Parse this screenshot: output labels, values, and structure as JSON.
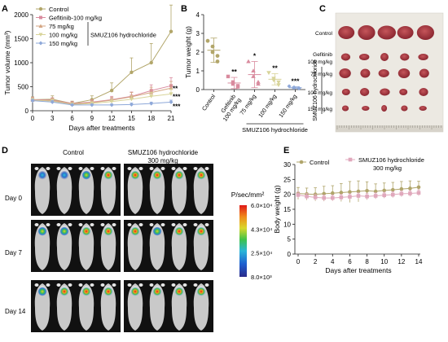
{
  "colors": {
    "control": "#b2a66a",
    "gefitinib": "#d98b9e",
    "smuz75": "#d4a683",
    "smuz100": "#d8d49a",
    "smuz150": "#8ea8d9",
    "bodyweight_control": "#b0a56b",
    "bodyweight_treated": "#e0a8bc",
    "tumor_tissue": "#a8333b"
  },
  "panelA": {
    "letter": "A",
    "legend": {
      "items": [
        "Control",
        "Gefitinib-100 mg/kg",
        "75 mg/kg",
        "100 mg/kg",
        "150 mg/kg"
      ],
      "group_label": "SMUZ106 hydrochloride"
    },
    "significance": [
      "**",
      "***",
      "***"
    ]
  },
  "panelB": {
    "letter": "B",
    "significance": [
      "**",
      "*",
      "**",
      "***"
    ],
    "group_label": "SMUZ106 hydrochloride"
  },
  "panelC": {
    "letter": "C",
    "row_labels": [
      "Control",
      "Gefitinib\n100 mg/kg",
      "75 mg/kg",
      "100 mg/kg",
      "150 mg/kg"
    ],
    "row_labels_lines": [
      [
        "Control"
      ],
      [
        "Gefitinib",
        "100 mg/kg"
      ],
      [
        "75 mg/kg"
      ],
      [
        "100 mg/kg"
      ],
      [
        "150 mg/kg"
      ]
    ],
    "group_label": "SMUZ106 hydrochloride"
  },
  "panelD": {
    "letter": "D",
    "col_headers": [
      "Control",
      "SMUZ106 hydrochloride",
      "300 mg/kg"
    ],
    "row_labels": [
      "Day 0",
      "Day 7",
      "Day 14"
    ],
    "colorbar": {
      "title": "P/sec/mm²",
      "ticks": [
        "6.0×10⁴",
        "4.3×10⁴",
        "2.5×10⁴",
        "8.0×10³"
      ]
    }
  },
  "panelE": {
    "letter": "E",
    "legend": [
      "Control",
      "SMUZ106 hydrochloride",
      "300 mg/kg"
    ]
  },
  "chart_data": [
    {
      "type": "line",
      "panel": "A",
      "xlabel": "Days after treatments",
      "ylabel": "Tumor volume (mm³)",
      "x": [
        0,
        3,
        6,
        9,
        12,
        15,
        18,
        21
      ],
      "xlim": [
        0,
        21
      ],
      "ylim": [
        0,
        2000
      ],
      "yticks": [
        0,
        500,
        1000,
        1500,
        2000
      ],
      "series": [
        {
          "name": "Control",
          "values": [
            230,
            240,
            150,
            230,
            420,
            800,
            1000,
            1650
          ],
          "err": [
            60,
            70,
            50,
            80,
            160,
            300,
            400,
            550
          ]
        },
        {
          "name": "Gefitinib-100 mg/kg",
          "values": [
            230,
            220,
            150,
            180,
            230,
            300,
            420,
            520
          ],
          "err": [
            50,
            50,
            40,
            50,
            70,
            90,
            120,
            170
          ]
        },
        {
          "name": "75 mg/kg",
          "values": [
            220,
            210,
            140,
            170,
            220,
            290,
            380,
            470
          ],
          "err": [
            50,
            50,
            40,
            50,
            60,
            90,
            110,
            140
          ]
        },
        {
          "name": "100 mg/kg",
          "values": [
            220,
            200,
            130,
            150,
            190,
            240,
            300,
            350
          ],
          "err": [
            40,
            40,
            30,
            40,
            50,
            70,
            80,
            100
          ]
        },
        {
          "name": "150 mg/kg",
          "values": [
            210,
            180,
            120,
            120,
            120,
            130,
            150,
            180
          ],
          "err": [
            30,
            30,
            20,
            20,
            20,
            30,
            30,
            40
          ]
        }
      ]
    },
    {
      "type": "scatter",
      "panel": "B",
      "ylabel": "Tumor weight (g)",
      "categories": [
        "Control",
        "Gefitinib\n100 mg/kg",
        "75 mg/kg",
        "100 mg/kg",
        "150 mg/kg"
      ],
      "category_lines": [
        [
          "Control"
        ],
        [
          "Gefitinib",
          "100 mg/kg"
        ],
        [
          "75 mg/kg"
        ],
        [
          "100 mg/kg"
        ],
        [
          "150 mg/kg"
        ]
      ],
      "ylim": [
        0,
        4
      ],
      "yticks": [
        0,
        1,
        2,
        3,
        4
      ],
      "groups": [
        {
          "points": [
            2.6,
            2.3,
            2.0,
            1.8,
            1.5
          ],
          "mean": 2.1,
          "sd": 0.65
        },
        {
          "points": [
            0.7,
            0.4,
            0.3,
            0.2,
            0.15
          ],
          "mean": 0.35,
          "sd": 0.3
        },
        {
          "points": [
            1.5,
            1.0,
            0.7,
            0.4,
            0.3
          ],
          "mean": 0.8,
          "sd": 0.7
        },
        {
          "points": [
            0.9,
            0.6,
            0.5,
            0.4,
            0.25
          ],
          "mean": 0.55,
          "sd": 0.3
        },
        {
          "points": [
            0.18,
            0.12,
            0.1,
            0.08,
            0.06
          ],
          "mean": 0.1,
          "sd": 0.05
        }
      ]
    },
    {
      "type": "line",
      "panel": "E",
      "xlabel": "Days after treatments",
      "ylabel": "Body weight (g)",
      "x": [
        0,
        1,
        2,
        3,
        4,
        5,
        6,
        7,
        8,
        9,
        10,
        11,
        12,
        13,
        14
      ],
      "xlim": [
        0,
        14
      ],
      "xticks": [
        0,
        2,
        4,
        6,
        8,
        10,
        12,
        14
      ],
      "ylim": [
        0,
        30
      ],
      "yticks": [
        0,
        5,
        10,
        15,
        20,
        25,
        30
      ],
      "series": [
        {
          "name": "Control",
          "values": [
            20.3,
            20.1,
            20.0,
            20.2,
            20.4,
            20.6,
            20.8,
            21.0,
            21.2,
            21.0,
            21.3,
            21.5,
            21.8,
            22.0,
            22.4
          ],
          "err": [
            2.0,
            2.0,
            2.2,
            2.5,
            2.5,
            3.0,
            3.5,
            3.5,
            3.0,
            2.5,
            2.5,
            2.5,
            2.5,
            2.5,
            2.0
          ]
        },
        {
          "name": "SMUZ106 hydrochloride 300 mg/kg",
          "values": [
            19.8,
            19.3,
            19.0,
            18.8,
            18.8,
            19.0,
            19.2,
            19.5,
            19.3,
            19.5,
            19.7,
            19.9,
            20.2,
            20.3,
            20.5
          ],
          "err": [
            1.0,
            1.0,
            1.0,
            1.0,
            1.0,
            1.0,
            1.0,
            1.0,
            1.0,
            1.0,
            1.0,
            1.0,
            1.0,
            1.0,
            1.0
          ]
        }
      ]
    }
  ]
}
